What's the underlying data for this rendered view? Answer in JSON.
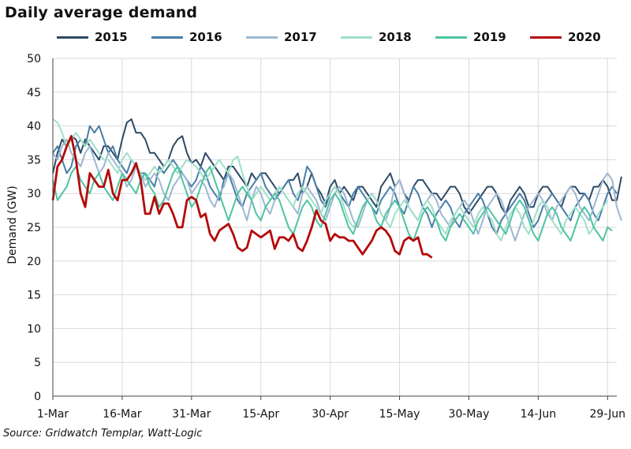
{
  "chart_data": {
    "type": "line",
    "title": "Daily average demand",
    "ylabel": "Demand (GW)",
    "xlabel": "",
    "ylim": [
      0,
      50
    ],
    "yticks": [
      0,
      5,
      10,
      15,
      20,
      25,
      30,
      35,
      40,
      45,
      50
    ],
    "xlim": [
      "1-Mar",
      "1-Jul"
    ],
    "xtick_labels": [
      "1-Mar",
      "16-Mar",
      "31-Mar",
      "15-Apr",
      "30-Apr",
      "15-May",
      "30-May",
      "14-Jun",
      "29-Jun"
    ],
    "xtick_day_index": [
      0,
      15,
      30,
      45,
      60,
      75,
      90,
      105,
      120
    ],
    "grid": true,
    "legend_position": "top",
    "source": "Source: Gridwatch Templar, Watt-Logic",
    "series": [
      {
        "name": "2015",
        "color": "#2d4a66",
        "start_date": "1-Mar",
        "values": [
          33,
          36,
          38,
          37,
          38.5,
          38,
          36,
          38,
          37,
          36,
          35,
          37,
          37,
          36,
          35,
          38,
          40.5,
          41,
          39,
          39,
          38,
          36,
          36,
          35,
          34,
          35,
          37,
          38,
          38.5,
          36,
          34.5,
          35,
          34,
          36,
          35,
          34,
          33,
          32,
          34,
          34,
          33,
          32,
          31,
          33,
          32,
          33,
          33,
          32,
          31,
          30,
          31,
          32,
          32,
          33,
          30,
          31,
          33,
          31,
          30,
          28.5,
          31,
          32,
          30,
          31,
          30,
          29,
          31,
          31,
          30,
          29,
          28,
          31,
          32,
          33,
          31,
          32,
          30,
          29,
          31,
          32,
          32,
          31,
          30,
          30,
          29,
          30,
          31,
          31,
          30,
          28,
          27,
          28,
          29,
          30,
          31,
          31,
          30,
          28,
          27,
          29,
          30,
          31,
          30,
          28,
          28,
          30,
          31,
          31,
          30,
          29,
          28,
          30,
          31,
          31,
          30,
          30,
          29,
          31,
          31,
          32,
          31,
          29,
          29,
          32.5
        ]
      },
      {
        "name": "2016",
        "color": "#4a7ea6",
        "start_date": "1-Mar",
        "values": [
          36,
          37,
          35,
          33,
          34,
          37,
          38,
          37,
          40,
          39,
          40,
          38,
          36,
          37,
          35,
          34,
          33,
          35,
          34,
          33,
          33,
          32,
          31,
          34,
          33,
          34,
          35,
          34,
          33,
          32,
          31,
          32,
          34,
          33,
          31,
          30,
          29,
          32,
          33,
          31,
          29,
          28,
          30,
          31,
          32,
          33,
          31,
          30,
          29,
          30,
          31,
          32,
          30,
          29,
          31,
          34,
          33,
          31,
          29,
          28,
          30,
          31,
          30,
          29,
          28,
          30,
          31,
          30,
          29,
          28,
          27,
          29,
          30,
          31,
          30,
          28,
          27,
          29,
          31,
          30,
          28,
          27,
          25,
          27,
          28,
          29,
          28,
          26,
          25,
          27,
          28,
          29,
          30,
          29,
          27,
          25,
          24,
          26,
          27,
          28,
          29,
          30,
          29,
          27,
          25,
          26,
          28,
          29,
          30,
          29,
          28,
          27,
          26,
          28,
          29,
          30,
          29,
          27,
          26,
          28,
          30,
          31,
          30
        ]
      },
      {
        "name": "2017",
        "color": "#9db7d1",
        "start_date": "1-Mar",
        "values": [
          36,
          35,
          37,
          38,
          36,
          35,
          34,
          36,
          37,
          35,
          33,
          34,
          36,
          35,
          34,
          33,
          31,
          32,
          34,
          33,
          31,
          32,
          33,
          32,
          30,
          29,
          31,
          32,
          33,
          32,
          30,
          31,
          32,
          31,
          29,
          28,
          30,
          31,
          33,
          32,
          30,
          28,
          26,
          29,
          31,
          30,
          28,
          27,
          29,
          31,
          30,
          29,
          28,
          27,
          30,
          31,
          30,
          29,
          27,
          26,
          28,
          30,
          31,
          30,
          28,
          26,
          25,
          27,
          29,
          30,
          29,
          27,
          26,
          28,
          31,
          32,
          30,
          28,
          27,
          26,
          28,
          29,
          30,
          29,
          27,
          26,
          25,
          27,
          28,
          29,
          28,
          26,
          24,
          26,
          28,
          29,
          30,
          29,
          27,
          25,
          23,
          25,
          27,
          28,
          29,
          30,
          29,
          27,
          26,
          28,
          29,
          30,
          31,
          30,
          28,
          27,
          26,
          28,
          30,
          32,
          33,
          32,
          28,
          26
        ]
      },
      {
        "name": "2018",
        "color": "#9fe0c8",
        "start_date": "1-Mar",
        "values": [
          41,
          40.5,
          39,
          37,
          38,
          39,
          38,
          37,
          38,
          37,
          36,
          35,
          35,
          34,
          33,
          35,
          36,
          35,
          34,
          33,
          32,
          33,
          34,
          33,
          34,
          35,
          34,
          33,
          34,
          35,
          34.5,
          34,
          33,
          32,
          33,
          34,
          35,
          34,
          33,
          35,
          35.5,
          33,
          31,
          29,
          30,
          31,
          30,
          29,
          30,
          31,
          30,
          29,
          28,
          30,
          31,
          30,
          29,
          28,
          27,
          29,
          30,
          31,
          30,
          28,
          26,
          25,
          26,
          28,
          29,
          30,
          29,
          27,
          26,
          25,
          27,
          28,
          29,
          28,
          27,
          26,
          28,
          29,
          28,
          26,
          25,
          24,
          26,
          27,
          28,
          27,
          26,
          25,
          27,
          28,
          27,
          26,
          24,
          23,
          25,
          27,
          28,
          27,
          25,
          24,
          26,
          28,
          29,
          28,
          26,
          25,
          24,
          26,
          27,
          28,
          27,
          26,
          24,
          25,
          27,
          28,
          29
        ]
      },
      {
        "name": "2019",
        "color": "#4ec4a2",
        "start_date": "1-Mar",
        "values": [
          32,
          29,
          30,
          31,
          33,
          34,
          32,
          31,
          30,
          32,
          33,
          31,
          30,
          29,
          31,
          33,
          32,
          31,
          30,
          32,
          33,
          31,
          30,
          28,
          29,
          31,
          33,
          34,
          32,
          30,
          28,
          29,
          31,
          33,
          34,
          32,
          30,
          28,
          26,
          28,
          30,
          31,
          30,
          29,
          27,
          26,
          28,
          29,
          30,
          29,
          27,
          25,
          24,
          26,
          28,
          29,
          28,
          26,
          25,
          27,
          29,
          30,
          29,
          27,
          25,
          24,
          26,
          28,
          29,
          28,
          26,
          25,
          27,
          28,
          29,
          28,
          26,
          24,
          23,
          25,
          27,
          28,
          27,
          26,
          24,
          23,
          25,
          26,
          27,
          26,
          25,
          24,
          26,
          27,
          28,
          27,
          26,
          25,
          24,
          26,
          28,
          29,
          28,
          26,
          24,
          23,
          25,
          27,
          28,
          27,
          25,
          24,
          23,
          25,
          27,
          28,
          27,
          25,
          24,
          23,
          25,
          24.5
        ]
      },
      {
        "name": "2020",
        "color": "#b40a0a",
        "start_date": "1-Mar",
        "values": [
          29,
          34,
          35,
          37,
          38.5,
          35,
          30,
          28,
          33,
          32,
          31,
          31,
          33.5,
          30,
          29,
          32,
          32,
          33,
          34.5,
          32,
          27,
          27,
          29.5,
          27,
          28.5,
          28.5,
          27,
          25,
          25,
          29,
          29.5,
          29,
          26.5,
          27,
          24,
          23,
          24.5,
          25,
          25.5,
          24,
          22,
          21.5,
          22,
          24.5,
          24,
          23.5,
          24,
          24.5,
          21.8,
          23.5,
          23.5,
          23,
          24,
          22,
          21.5,
          23,
          25,
          27.5,
          26,
          25.5,
          23,
          24,
          23.5,
          23.5,
          23,
          23,
          22,
          21,
          22,
          23,
          24.5,
          25,
          24.5,
          23.5,
          21.5,
          21,
          23,
          23.5,
          23,
          23.5,
          21,
          21,
          20.5
        ]
      }
    ]
  }
}
